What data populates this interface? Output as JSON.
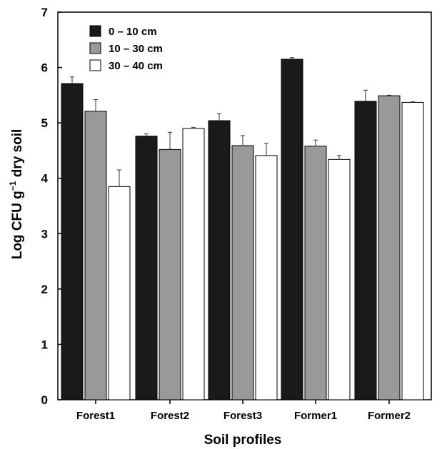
{
  "chart_data": {
    "type": "bar",
    "xlabel": "Soil profiles",
    "ylabel_main": "Log CFU g",
    "ylabel_sup": "−1",
    "ylabel_tail": " dry soil",
    "ylim": [
      0,
      7
    ],
    "yticks": [
      "0",
      "1",
      "2",
      "3",
      "4",
      "5",
      "6",
      "7"
    ],
    "categories": [
      "Forest1",
      "Forest2",
      "Forest3",
      "Former1",
      "Former2"
    ],
    "legend_position": "top-left",
    "series": [
      {
        "name": "0 – 10 cm",
        "color": "#1a1a1a",
        "values": [
          5.71,
          4.76,
          5.04,
          6.15,
          5.39
        ],
        "errors": [
          0.12,
          0.04,
          0.13,
          0.03,
          0.2
        ]
      },
      {
        "name": "10 – 30 cm",
        "color": "#999999",
        "values": [
          5.21,
          4.52,
          4.59,
          4.58,
          5.49
        ],
        "errors": [
          0.21,
          0.31,
          0.18,
          0.11,
          0.01
        ]
      },
      {
        "name": "30 – 40 cm",
        "color": "#ffffff",
        "values": [
          3.85,
          4.9,
          4.41,
          4.34,
          5.37
        ],
        "errors": [
          0.3,
          0.02,
          0.22,
          0.07,
          0.01
        ]
      }
    ]
  }
}
